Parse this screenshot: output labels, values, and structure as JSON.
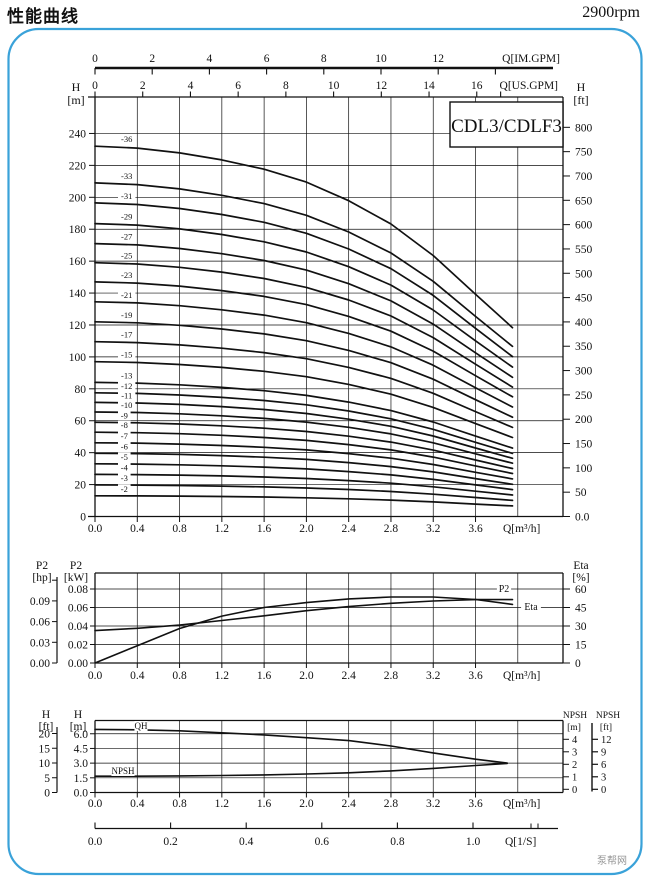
{
  "header": {
    "title": "性能曲线",
    "rpm": "2900rpm"
  },
  "model_label": "CDL3/CDLF3",
  "watermark": "泵帮网",
  "chart_data": [
    {
      "id": "head-curves",
      "type": "line",
      "title": "CDL3/CDLF3",
      "x_axis": {
        "label": "Q[m³/h]",
        "ticks": [
          "0.0",
          "0.4",
          "0.8",
          "1.2",
          "1.6",
          "2.0",
          "2.4",
          "2.8",
          "3.2",
          "3.6"
        ],
        "range": [
          0,
          4.4
        ],
        "grid_step": 0.4,
        "grid_max": 4.0
      },
      "x_axis_im_gpm": {
        "label": "Q[IM.GPM]",
        "ticks": [
          0,
          2,
          4,
          6,
          8,
          10,
          12
        ],
        "extra_tick": 14
      },
      "x_axis_us_gpm": {
        "label": "Q[US.GPM]",
        "ticks": [
          0,
          2,
          4,
          6,
          8,
          10,
          12,
          14,
          16
        ],
        "extra_tick": 17
      },
      "y_axis_left": {
        "label": "H",
        "unit": "[m]",
        "ticks": [
          240,
          220,
          200,
          180,
          160,
          140,
          120,
          100,
          80,
          60,
          40,
          20,
          0
        ],
        "range": [
          0,
          263
        ]
      },
      "y_axis_right": {
        "label": "H",
        "unit": "[ft]",
        "ticks": [
          "800",
          "750",
          "700",
          "650",
          "600",
          "550",
          "500",
          "450",
          "400",
          "350",
          "300",
          "250",
          "200",
          "150",
          "100",
          "50",
          "0.0"
        ]
      },
      "flow_fraction_profile": {
        "q": [
          0,
          0.4,
          0.8,
          1.2,
          1.6,
          2.0,
          2.4,
          2.8,
          3.2,
          3.6,
          3.95
        ],
        "fraction": [
          1.0,
          0.995,
          0.982,
          0.963,
          0.938,
          0.903,
          0.853,
          0.79,
          0.705,
          0.6,
          0.51
        ]
      },
      "curves": [
        {
          "label": "-2",
          "shutoff_head_m": 13.0
        },
        {
          "label": "-3",
          "shutoff_head_m": 19.8
        },
        {
          "label": "-4",
          "shutoff_head_m": 26.4
        },
        {
          "label": "-5",
          "shutoff_head_m": 33.0
        },
        {
          "label": "-6",
          "shutoff_head_m": 39.6
        },
        {
          "label": "-7",
          "shutoff_head_m": 46.2
        },
        {
          "label": "-8",
          "shutoff_head_m": 52.8
        },
        {
          "label": "-9",
          "shutoff_head_m": 59.0
        },
        {
          "label": "-10",
          "shutoff_head_m": 65.5
        },
        {
          "label": "-11",
          "shutoff_head_m": 71.5
        },
        {
          "label": "-12",
          "shutoff_head_m": 77.5
        },
        {
          "label": "-13",
          "shutoff_head_m": 84.0
        },
        {
          "label": "-15",
          "shutoff_head_m": 97.0
        },
        {
          "label": "-17",
          "shutoff_head_m": 109.5
        },
        {
          "label": "-19",
          "shutoff_head_m": 122.0
        },
        {
          "label": "-21",
          "shutoff_head_m": 134.5
        },
        {
          "label": "-23",
          "shutoff_head_m": 147.0
        },
        {
          "label": "-25",
          "shutoff_head_m": 159.0
        },
        {
          "label": "-27",
          "shutoff_head_m": 171.0
        },
        {
          "label": "-29",
          "shutoff_head_m": 183.5
        },
        {
          "label": "-31",
          "shutoff_head_m": 196.5
        },
        {
          "label": "-33",
          "shutoff_head_m": 209.0
        },
        {
          "label": "-36",
          "shutoff_head_m": 232.0
        }
      ]
    },
    {
      "id": "power-efficiency",
      "type": "line",
      "x_axis": {
        "label": "Q[m³/h]",
        "ticks": [
          "0.0",
          "0.4",
          "0.8",
          "1.2",
          "1.6",
          "2.0",
          "2.4",
          "2.8",
          "3.2",
          "3.6"
        ]
      },
      "y_axis_p2_kw": {
        "label": "P2",
        "unit": "[kW]",
        "ticks": [
          "0.08",
          "0.06",
          "0.04",
          "0.02",
          "0.00"
        ]
      },
      "y_axis_p2_hp": {
        "label": "P2",
        "unit": "[hp]",
        "ticks": [
          "0.09",
          "0.06",
          "0.03",
          "0.00"
        ]
      },
      "y_axis_eta": {
        "label": "Eta",
        "unit": "[%]",
        "ticks": [
          60,
          45,
          30,
          15,
          0
        ]
      },
      "series": [
        {
          "name": "P2",
          "unit": "kW",
          "x": [
            0,
            0.4,
            0.8,
            1.2,
            1.6,
            2.0,
            2.4,
            2.8,
            3.2,
            3.6,
            3.95
          ],
          "values": [
            0.035,
            0.0375,
            0.041,
            0.046,
            0.051,
            0.0565,
            0.061,
            0.0645,
            0.067,
            0.0685,
            0.0685
          ]
        },
        {
          "name": "Eta",
          "unit": "%",
          "x": [
            0,
            0.4,
            0.8,
            1.2,
            1.6,
            2.0,
            2.4,
            2.8,
            3.2,
            3.6,
            3.95
          ],
          "values": [
            0,
            14,
            28,
            38,
            45,
            49,
            52,
            53.5,
            53.5,
            51.5,
            47.5
          ]
        }
      ]
    },
    {
      "id": "npsh-qh",
      "type": "line",
      "x_axis": {
        "label": "Q[m³/h]",
        "ticks": [
          "0.0",
          "0.4",
          "0.8",
          "1.2",
          "1.6",
          "2.0",
          "2.4",
          "2.8",
          "3.2",
          "3.6"
        ]
      },
      "y_axis_h_m": {
        "label": "H",
        "unit": "[m]",
        "ticks": [
          "6.0",
          "4.5",
          "3.0",
          "1.5",
          "0.0"
        ]
      },
      "y_axis_h_ft": {
        "label": "H",
        "unit": "[ft]",
        "ticks": [
          20,
          15,
          10,
          5,
          0
        ]
      },
      "y_axis_npsh_m": {
        "label": "NPSH",
        "unit": "[m]",
        "ticks": [
          4,
          3,
          2,
          1,
          0
        ]
      },
      "y_axis_npsh_ft": {
        "label": "NPSH",
        "unit": "[ft]",
        "ticks": [
          12,
          9,
          6,
          3,
          0
        ]
      },
      "series": [
        {
          "name": "QH",
          "unit": "m",
          "x": [
            0,
            0.4,
            0.8,
            1.2,
            1.6,
            2.0,
            2.4,
            2.8,
            3.2,
            3.6,
            3.9
          ],
          "values": [
            6.45,
            6.4,
            6.3,
            6.1,
            5.88,
            5.6,
            5.3,
            4.75,
            4.05,
            3.4,
            3.0
          ]
        },
        {
          "name": "NPSH",
          "unit": "m",
          "x": [
            0,
            0.4,
            0.8,
            1.2,
            1.6,
            2.0,
            2.4,
            2.8,
            3.2,
            3.6,
            3.9
          ],
          "values": [
            1.05,
            1.05,
            1.07,
            1.1,
            1.15,
            1.22,
            1.32,
            1.47,
            1.67,
            1.9,
            2.07
          ]
        }
      ]
    },
    {
      "id": "flow-ls-axis",
      "type": "axis",
      "x_axis": {
        "label": "Q[1/S]",
        "ticks": [
          "0.0",
          "0.2",
          "0.4",
          "0.6",
          "0.8",
          "1.0"
        ]
      }
    }
  ]
}
